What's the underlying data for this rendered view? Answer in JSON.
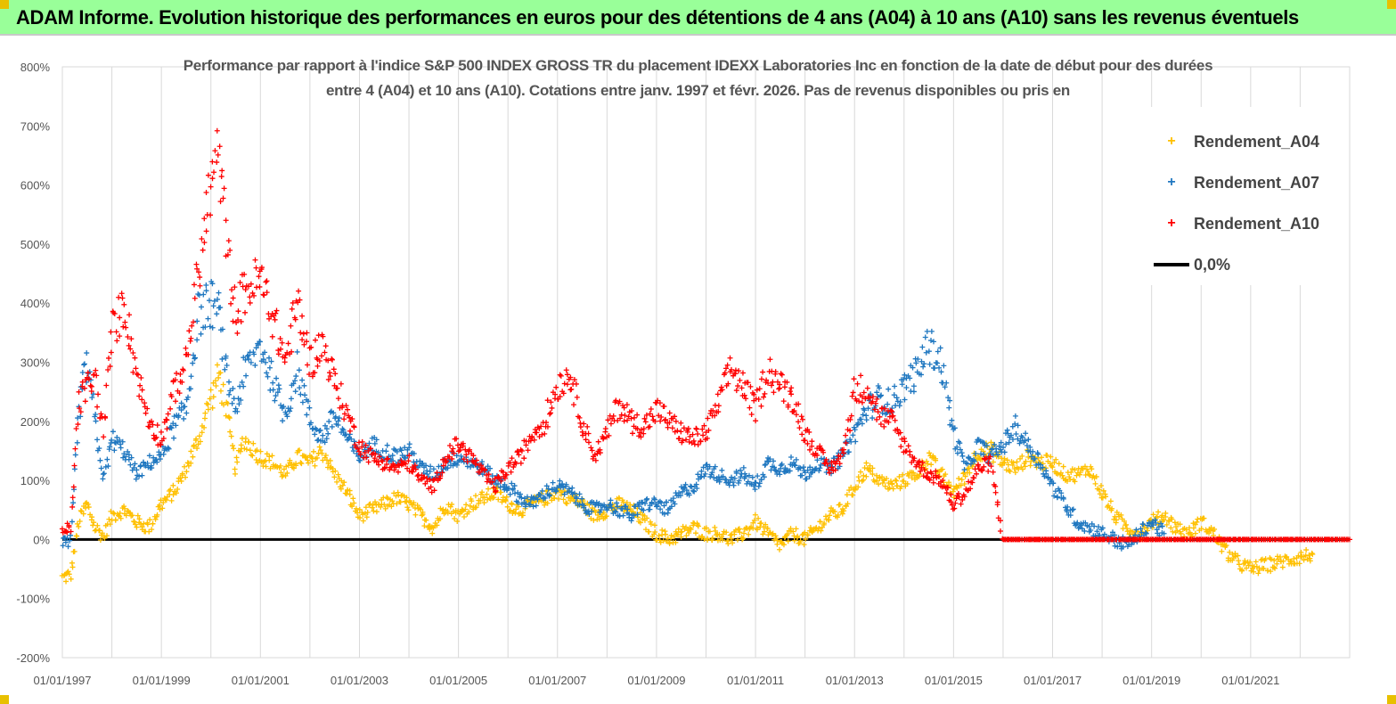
{
  "banner": {
    "title": "ADAM Informe. Evolution historique des performances en euros pour des détentions de 4 ans (A04) à 10 ans (A10) sans les revenus éventuels",
    "background": "#99ff99",
    "corner_color": "#e8c000"
  },
  "chart_data": {
    "type": "scatter",
    "title_line1": "Performance par rapport à l'indice S&P 500 INDEX GROSS TR  du placement IDEXX Laboratories Inc en fonction de la date de début pour des durées",
    "title_line2": "entre 4 (A04) et 10 ans (A10).  Cotations entre janv. 1997 et févr. 2026. Pas de revenus disponibles ou pris en",
    "xlabel": "",
    "ylabel": "",
    "x_range": [
      "1997-01-01",
      "2023-01-01"
    ],
    "ylim": [
      -200,
      800
    ],
    "y_ticks": [
      -200,
      -100,
      0,
      100,
      200,
      300,
      400,
      500,
      600,
      700,
      800
    ],
    "y_tick_labels": [
      "-200%",
      "-100%",
      "0%",
      "100%",
      "200%",
      "300%",
      "400%",
      "500%",
      "600%",
      "700%",
      "800%"
    ],
    "x_tick_labels": [
      "01/01/1997",
      "01/01/1999",
      "01/01/2001",
      "01/01/2003",
      "01/01/2005",
      "01/01/2007",
      "01/01/2009",
      "01/01/2011",
      "01/01/2013",
      "01/01/2015",
      "01/01/2017",
      "01/01/2019",
      "01/01/2021"
    ],
    "grid": "vertical",
    "legend_position": "top-right",
    "series": [
      {
        "name": "Rendement_A04",
        "color": "#ffc000",
        "points": [
          [
            "1997-01",
            -65
          ],
          [
            "1997-03",
            -60
          ],
          [
            "1997-05",
            30
          ],
          [
            "1997-07",
            60
          ],
          [
            "1997-09",
            20
          ],
          [
            "1997-11",
            5
          ],
          [
            "1998-01",
            40
          ],
          [
            "1998-04",
            50
          ],
          [
            "1998-07",
            30
          ],
          [
            "1998-10",
            20
          ],
          [
            "1999-01",
            60
          ],
          [
            "1999-04",
            80
          ],
          [
            "1999-07",
            120
          ],
          [
            "1999-10",
            170
          ],
          [
            "2000-01",
            240
          ],
          [
            "2000-03",
            280
          ],
          [
            "2000-05",
            210
          ],
          [
            "2000-07",
            120
          ],
          [
            "2000-09",
            170
          ],
          [
            "2001-01",
            140
          ],
          [
            "2001-04",
            130
          ],
          [
            "2001-07",
            110
          ],
          [
            "2001-10",
            140
          ],
          [
            "2002-01",
            130
          ],
          [
            "2002-04",
            150
          ],
          [
            "2002-07",
            110
          ],
          [
            "2002-10",
            80
          ],
          [
            "2003-01",
            40
          ],
          [
            "2003-04",
            50
          ],
          [
            "2003-07",
            60
          ],
          [
            "2003-10",
            70
          ],
          [
            "2004-01",
            60
          ],
          [
            "2004-04",
            40
          ],
          [
            "2004-07",
            20
          ],
          [
            "2004-10",
            60
          ],
          [
            "2005-01",
            40
          ],
          [
            "2005-04",
            60
          ],
          [
            "2005-07",
            70
          ],
          [
            "2005-10",
            80
          ],
          [
            "2006-01",
            60
          ],
          [
            "2006-04",
            50
          ],
          [
            "2006-07",
            60
          ],
          [
            "2006-10",
            70
          ],
          [
            "2007-01",
            80
          ],
          [
            "2007-04",
            70
          ],
          [
            "2007-07",
            60
          ],
          [
            "2007-10",
            40
          ],
          [
            "2008-01",
            50
          ],
          [
            "2008-04",
            60
          ],
          [
            "2008-07",
            50
          ],
          [
            "2008-10",
            30
          ],
          [
            "2009-01",
            10
          ],
          [
            "2009-04",
            0
          ],
          [
            "2009-07",
            10
          ],
          [
            "2009-10",
            20
          ],
          [
            "2010-01",
            10
          ],
          [
            "2010-04",
            10
          ],
          [
            "2010-07",
            0
          ],
          [
            "2010-10",
            10
          ],
          [
            "2011-01",
            30
          ],
          [
            "2011-04",
            10
          ],
          [
            "2011-07",
            -10
          ],
          [
            "2011-10",
            10
          ],
          [
            "2012-01",
            0
          ],
          [
            "2012-04",
            20
          ],
          [
            "2012-07",
            40
          ],
          [
            "2012-10",
            50
          ],
          [
            "2013-01",
            90
          ],
          [
            "2013-04",
            120
          ],
          [
            "2013-07",
            100
          ],
          [
            "2013-10",
            90
          ],
          [
            "2014-01",
            100
          ],
          [
            "2014-04",
            110
          ],
          [
            "2014-07",
            140
          ],
          [
            "2014-10",
            110
          ],
          [
            "2015-01",
            80
          ],
          [
            "2015-04",
            110
          ],
          [
            "2015-07",
            150
          ],
          [
            "2015-10",
            150
          ],
          [
            "2016-01",
            130
          ],
          [
            "2016-04",
            120
          ],
          [
            "2016-07",
            140
          ],
          [
            "2016-10",
            130
          ],
          [
            "2017-01",
            130
          ],
          [
            "2017-04",
            110
          ],
          [
            "2017-07",
            110
          ],
          [
            "2017-10",
            120
          ],
          [
            "2018-01",
            80
          ],
          [
            "2018-04",
            40
          ],
          [
            "2018-07",
            20
          ],
          [
            "2018-10",
            10
          ],
          [
            "2019-01",
            30
          ],
          [
            "2019-04",
            40
          ],
          [
            "2019-07",
            20
          ],
          [
            "2019-10",
            10
          ],
          [
            "2020-01",
            30
          ],
          [
            "2020-04",
            10
          ],
          [
            "2020-07",
            -20
          ],
          [
            "2020-10",
            -40
          ],
          [
            "2021-01",
            -50
          ],
          [
            "2021-04",
            -45
          ],
          [
            "2021-07",
            -40
          ],
          [
            "2021-10",
            -35
          ],
          [
            "2022-01",
            -30
          ],
          [
            "2022-04",
            -25
          ]
        ]
      },
      {
        "name": "Rendement_A07",
        "color": "#1f77c0",
        "points": [
          [
            "1997-01",
            -10
          ],
          [
            "1997-03",
            -5
          ],
          [
            "1997-05",
            220
          ],
          [
            "1997-07",
            300
          ],
          [
            "1997-09",
            200
          ],
          [
            "1997-11",
            100
          ],
          [
            "1998-01",
            170
          ],
          [
            "1998-04",
            150
          ],
          [
            "1998-07",
            110
          ],
          [
            "1998-10",
            130
          ],
          [
            "1999-01",
            140
          ],
          [
            "1999-04",
            190
          ],
          [
            "1999-07",
            220
          ],
          [
            "1999-10",
            380
          ],
          [
            "2000-01",
            400
          ],
          [
            "2000-03",
            380
          ],
          [
            "2000-05",
            270
          ],
          [
            "2000-07",
            220
          ],
          [
            "2000-09",
            280
          ],
          [
            "2001-01",
            330
          ],
          [
            "2001-04",
            270
          ],
          [
            "2001-07",
            210
          ],
          [
            "2001-10",
            290
          ],
          [
            "2002-01",
            200
          ],
          [
            "2002-04",
            170
          ],
          [
            "2002-07",
            210
          ],
          [
            "2002-10",
            170
          ],
          [
            "2003-01",
            140
          ],
          [
            "2003-04",
            160
          ],
          [
            "2003-07",
            150
          ],
          [
            "2003-10",
            140
          ],
          [
            "2004-01",
            150
          ],
          [
            "2004-04",
            120
          ],
          [
            "2004-07",
            110
          ],
          [
            "2004-10",
            130
          ],
          [
            "2005-01",
            140
          ],
          [
            "2005-04",
            130
          ],
          [
            "2005-07",
            120
          ],
          [
            "2005-10",
            100
          ],
          [
            "2006-01",
            90
          ],
          [
            "2006-04",
            70
          ],
          [
            "2006-07",
            60
          ],
          [
            "2006-10",
            80
          ],
          [
            "2007-01",
            90
          ],
          [
            "2007-04",
            80
          ],
          [
            "2007-07",
            60
          ],
          [
            "2007-10",
            50
          ],
          [
            "2008-01",
            60
          ],
          [
            "2008-04",
            50
          ],
          [
            "2008-07",
            40
          ],
          [
            "2008-10",
            60
          ],
          [
            "2009-01",
            60
          ],
          [
            "2009-04",
            50
          ],
          [
            "2009-07",
            80
          ],
          [
            "2009-10",
            90
          ],
          [
            "2010-01",
            120
          ],
          [
            "2010-04",
            110
          ],
          [
            "2010-07",
            100
          ],
          [
            "2010-10",
            110
          ],
          [
            "2011-01",
            90
          ],
          [
            "2011-04",
            130
          ],
          [
            "2011-07",
            120
          ],
          [
            "2011-10",
            130
          ],
          [
            "2012-01",
            110
          ],
          [
            "2012-04",
            130
          ],
          [
            "2012-07",
            120
          ],
          [
            "2012-10",
            140
          ],
          [
            "2013-01",
            180
          ],
          [
            "2013-04",
            220
          ],
          [
            "2013-07",
            240
          ],
          [
            "2013-10",
            230
          ],
          [
            "2014-01",
            260
          ],
          [
            "2014-04",
            280
          ],
          [
            "2014-07",
            330
          ],
          [
            "2014-10",
            300
          ],
          [
            "2015-01",
            180
          ],
          [
            "2015-04",
            120
          ],
          [
            "2015-07",
            160
          ],
          [
            "2015-10",
            140
          ],
          [
            "2016-01",
            160
          ],
          [
            "2016-04",
            190
          ],
          [
            "2016-07",
            160
          ],
          [
            "2016-10",
            130
          ],
          [
            "2017-01",
            90
          ],
          [
            "2017-04",
            60
          ],
          [
            "2017-07",
            30
          ],
          [
            "2017-10",
            20
          ],
          [
            "2018-01",
            10
          ],
          [
            "2018-04",
            0
          ],
          [
            "2018-07",
            -10
          ],
          [
            "2018-10",
            10
          ],
          [
            "2019-01",
            30
          ],
          [
            "2019-04",
            10
          ]
        ]
      },
      {
        "name": "Rendement_A10",
        "color": "#ff0000",
        "points": [
          [
            "1997-01",
            10
          ],
          [
            "1997-03",
            20
          ],
          [
            "1997-05",
            230
          ],
          [
            "1997-07",
            260
          ],
          [
            "1997-09",
            270
          ],
          [
            "1997-11",
            180
          ],
          [
            "1998-01",
            350
          ],
          [
            "1998-04",
            400
          ],
          [
            "1998-07",
            280
          ],
          [
            "1998-10",
            200
          ],
          [
            "1999-01",
            170
          ],
          [
            "1999-04",
            250
          ],
          [
            "1999-07",
            300
          ],
          [
            "1999-10",
            450
          ],
          [
            "2000-01",
            600
          ],
          [
            "2000-03",
            650
          ],
          [
            "2000-05",
            480
          ],
          [
            "2000-07",
            380
          ],
          [
            "2000-09",
            420
          ],
          [
            "2001-01",
            440
          ],
          [
            "2001-04",
            380
          ],
          [
            "2001-07",
            300
          ],
          [
            "2001-10",
            400
          ],
          [
            "2002-01",
            300
          ],
          [
            "2002-04",
            330
          ],
          [
            "2002-07",
            270
          ],
          [
            "2002-10",
            210
          ],
          [
            "2003-01",
            160
          ],
          [
            "2003-04",
            140
          ],
          [
            "2003-07",
            130
          ],
          [
            "2003-10",
            120
          ],
          [
            "2004-01",
            130
          ],
          [
            "2004-04",
            100
          ],
          [
            "2004-07",
            90
          ],
          [
            "2004-10",
            140
          ],
          [
            "2005-01",
            160
          ],
          [
            "2005-04",
            140
          ],
          [
            "2005-07",
            110
          ],
          [
            "2005-10",
            90
          ],
          [
            "2006-01",
            120
          ],
          [
            "2006-04",
            140
          ],
          [
            "2006-07",
            180
          ],
          [
            "2006-10",
            200
          ],
          [
            "2007-01",
            260
          ],
          [
            "2007-04",
            280
          ],
          [
            "2007-07",
            200
          ],
          [
            "2007-10",
            140
          ],
          [
            "2008-01",
            180
          ],
          [
            "2008-04",
            230
          ],
          [
            "2008-07",
            200
          ],
          [
            "2008-10",
            190
          ],
          [
            "2009-01",
            220
          ],
          [
            "2009-04",
            200
          ],
          [
            "2009-07",
            180
          ],
          [
            "2009-10",
            170
          ],
          [
            "2010-01",
            180
          ],
          [
            "2010-04",
            230
          ],
          [
            "2010-07",
            290
          ],
          [
            "2010-10",
            260
          ],
          [
            "2011-01",
            220
          ],
          [
            "2011-04",
            290
          ],
          [
            "2011-07",
            260
          ],
          [
            "2011-10",
            240
          ],
          [
            "2012-01",
            180
          ],
          [
            "2012-04",
            150
          ],
          [
            "2012-07",
            120
          ],
          [
            "2012-10",
            140
          ],
          [
            "2013-01",
            250
          ],
          [
            "2013-04",
            260
          ],
          [
            "2013-07",
            210
          ],
          [
            "2013-10",
            200
          ],
          [
            "2014-01",
            160
          ],
          [
            "2014-04",
            130
          ],
          [
            "2014-07",
            110
          ],
          [
            "2014-10",
            100
          ],
          [
            "2015-01",
            60
          ],
          [
            "2015-04",
            80
          ],
          [
            "2015-07",
            120
          ],
          [
            "2015-10",
            130
          ],
          [
            "2016-01",
            0
          ],
          [
            "2017-01",
            0
          ],
          [
            "2018-01",
            0
          ],
          [
            "2019-01",
            0
          ],
          [
            "2020-01",
            0
          ],
          [
            "2021-01",
            0
          ],
          [
            "2022-01",
            0
          ],
          [
            "2023-01",
            0
          ]
        ]
      }
    ],
    "reference_line": {
      "name": "0,0%",
      "y": 0,
      "color": "#000000"
    }
  }
}
